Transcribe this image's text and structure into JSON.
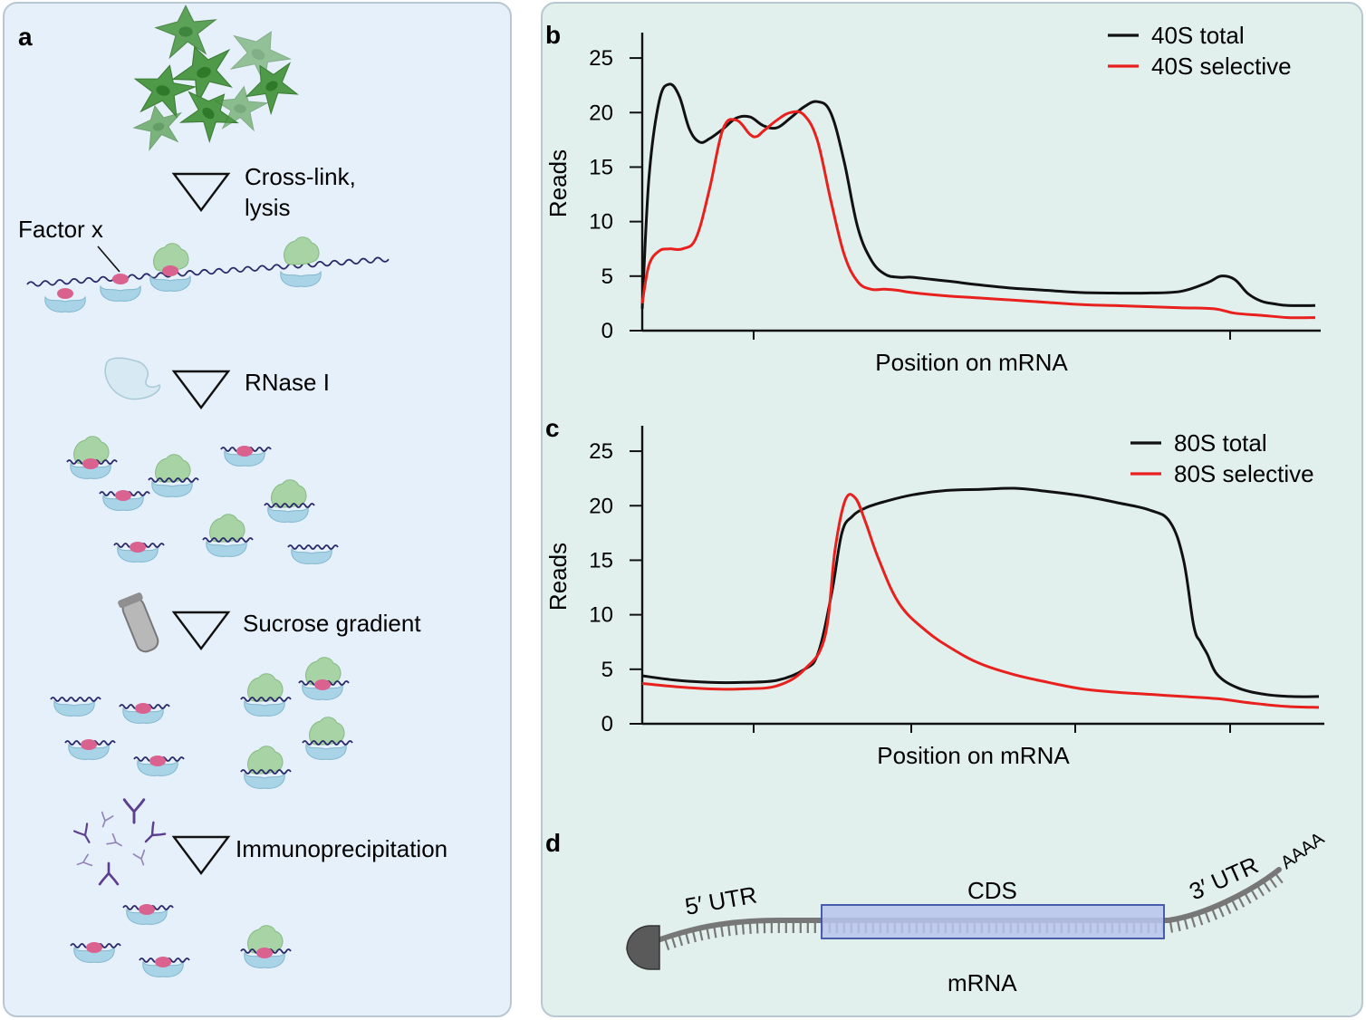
{
  "panels": {
    "a": {
      "letter": "a",
      "factor_label": "Factor x",
      "steps": [
        "Cross-link,",
        "lysis",
        "RNase I",
        "Sucrose gradient",
        "Immunoprecipitation"
      ]
    },
    "b": {
      "letter": "b"
    },
    "c": {
      "letter": "c"
    },
    "d": {
      "letter": "d",
      "utr5": "5′ UTR",
      "cds": "CDS",
      "utr3": "3′ UTR",
      "polya": "AAAA",
      "mrna": "mRNA"
    }
  },
  "colors": {
    "total": "#111111",
    "selective": "#e8201e",
    "cell": "#4f9a48",
    "ribosome_small": "#a9d3e6",
    "ribosome_large": "#a8d3a4",
    "factor": "#d9628f"
  },
  "chart_data": [
    {
      "type": "line",
      "title": "",
      "xlabel": "Position on mRNA",
      "ylabel": "Reads",
      "ylim": [
        0,
        27
      ],
      "xlim": [
        0,
        100
      ],
      "yticks": [
        "0",
        "5",
        "10",
        "15",
        "20",
        "25"
      ],
      "legend_position": "top-right",
      "series": [
        {
          "name": "40S total",
          "x": [
            0,
            1,
            2.5,
            4,
            5.5,
            7,
            8.5,
            10,
            12,
            14,
            16,
            18,
            20,
            22,
            24,
            26,
            28,
            30,
            32,
            34,
            36,
            38,
            40,
            43,
            46,
            50,
            55,
            60,
            65,
            70,
            75,
            80,
            84,
            86,
            88,
            90,
            92,
            94,
            96,
            100
          ],
          "y": [
            2,
            14,
            21,
            22.6,
            21.5,
            18.5,
            17.3,
            17.6,
            18.5,
            19.5,
            19.6,
            18.8,
            18.6,
            19.5,
            20.5,
            21,
            20,
            15.5,
            9.5,
            6.5,
            5.2,
            4.9,
            4.9,
            4.7,
            4.5,
            4.2,
            3.9,
            3.7,
            3.5,
            3.45,
            3.45,
            3.6,
            4.4,
            5,
            4.7,
            3.4,
            2.7,
            2.45,
            2.3,
            2.3
          ]
        },
        {
          "name": "40S selective",
          "x": [
            0,
            1,
            2.5,
            4,
            6,
            8,
            10,
            12,
            14,
            16,
            17,
            18,
            20,
            22,
            24,
            26,
            28,
            30,
            32,
            34,
            36,
            38,
            40,
            45,
            50,
            55,
            60,
            65,
            70,
            75,
            80,
            85,
            88,
            92,
            96,
            100
          ],
          "y": [
            2.5,
            6,
            7.3,
            7.5,
            7.5,
            8.5,
            13,
            18.5,
            19.3,
            18,
            17.8,
            18.3,
            19.3,
            20,
            19.8,
            17.5,
            12,
            7,
            4.5,
            3.8,
            3.8,
            3.7,
            3.5,
            3.2,
            3,
            2.8,
            2.6,
            2.4,
            2.3,
            2.2,
            2.1,
            2,
            1.6,
            1.4,
            1.2,
            1.2
          ]
        }
      ]
    },
    {
      "type": "line",
      "title": "",
      "xlabel": "Position on mRNA",
      "ylabel": "Reads",
      "ylim": [
        0,
        27
      ],
      "xlim": [
        0,
        100
      ],
      "yticks": [
        "0",
        "5",
        "10",
        "15",
        "20",
        "25"
      ],
      "legend_position": "top-right",
      "series": [
        {
          "name": "80S total",
          "x": [
            0,
            5,
            10,
            15,
            20,
            24,
            26,
            28,
            29.5,
            31,
            33,
            36,
            40,
            45,
            50,
            55,
            60,
            65,
            70,
            75,
            78,
            80,
            81.5,
            82.5,
            83.5,
            85,
            88,
            92,
            96,
            100
          ],
          "y": [
            4.4,
            4,
            3.8,
            3.8,
            4,
            5,
            6.5,
            12,
            17.5,
            19,
            19.8,
            20.4,
            21,
            21.4,
            21.5,
            21.6,
            21.3,
            20.9,
            20.3,
            19.6,
            18.5,
            15,
            9,
            7.5,
            6.4,
            4.5,
            3.3,
            2.7,
            2.5,
            2.5
          ]
        },
        {
          "name": "80S selective",
          "x": [
            0,
            5,
            10,
            15,
            20,
            24,
            27,
            28.5,
            30,
            31.5,
            33,
            35,
            38,
            42,
            46,
            50,
            55,
            60,
            65,
            70,
            75,
            80,
            85,
            90,
            95,
            100
          ],
          "y": [
            3.7,
            3.4,
            3.2,
            3.2,
            3.5,
            5,
            8,
            16,
            20.5,
            20.7,
            18.5,
            15,
            11,
            8.5,
            6.8,
            5.5,
            4.5,
            3.8,
            3.2,
            2.9,
            2.7,
            2.5,
            2.3,
            1.9,
            1.6,
            1.5
          ]
        }
      ]
    }
  ]
}
